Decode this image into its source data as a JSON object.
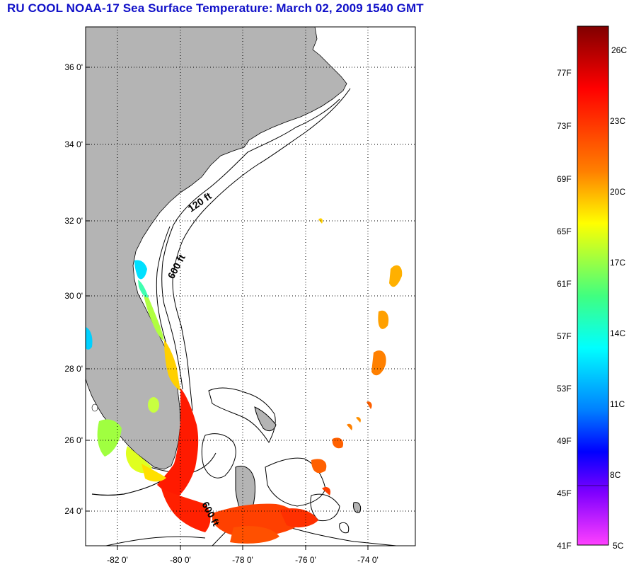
{
  "title": "RU COOL  NOAA-17  Sea Surface Temperature:  March 02, 2009 1540 GMT",
  "map": {
    "lat_labels": [
      "36 0'",
      "34 0'",
      "32 0'",
      "30 0'",
      "28 0'",
      "26 0'",
      "24 0'"
    ],
    "lon_labels": [
      "-82 0'",
      "-80 0'",
      "-78 0'",
      "-76 0'",
      "-74 0'"
    ],
    "isobaths": [
      "120 ft",
      "600 ft",
      "600 ft"
    ],
    "colors": {
      "land": "#b4b4b4",
      "water": "#ffffff",
      "grid": "#000000"
    }
  },
  "colorbar": {
    "f_labels": [
      "77F",
      "73F",
      "69F",
      "65F",
      "61F",
      "57F",
      "53F",
      "49F",
      "45F",
      "41F"
    ],
    "c_labels": [
      "26C",
      "23C",
      "20C",
      "17C",
      "14C",
      "11C",
      "8C",
      "5C"
    ],
    "colors_top_to_bottom": [
      "#800000",
      "#ff0000",
      "#ff8000",
      "#ffff00",
      "#80ff40",
      "#00ffff",
      "#0080ff",
      "#0000ff",
      "#8000ff",
      "#ff40ff"
    ]
  }
}
